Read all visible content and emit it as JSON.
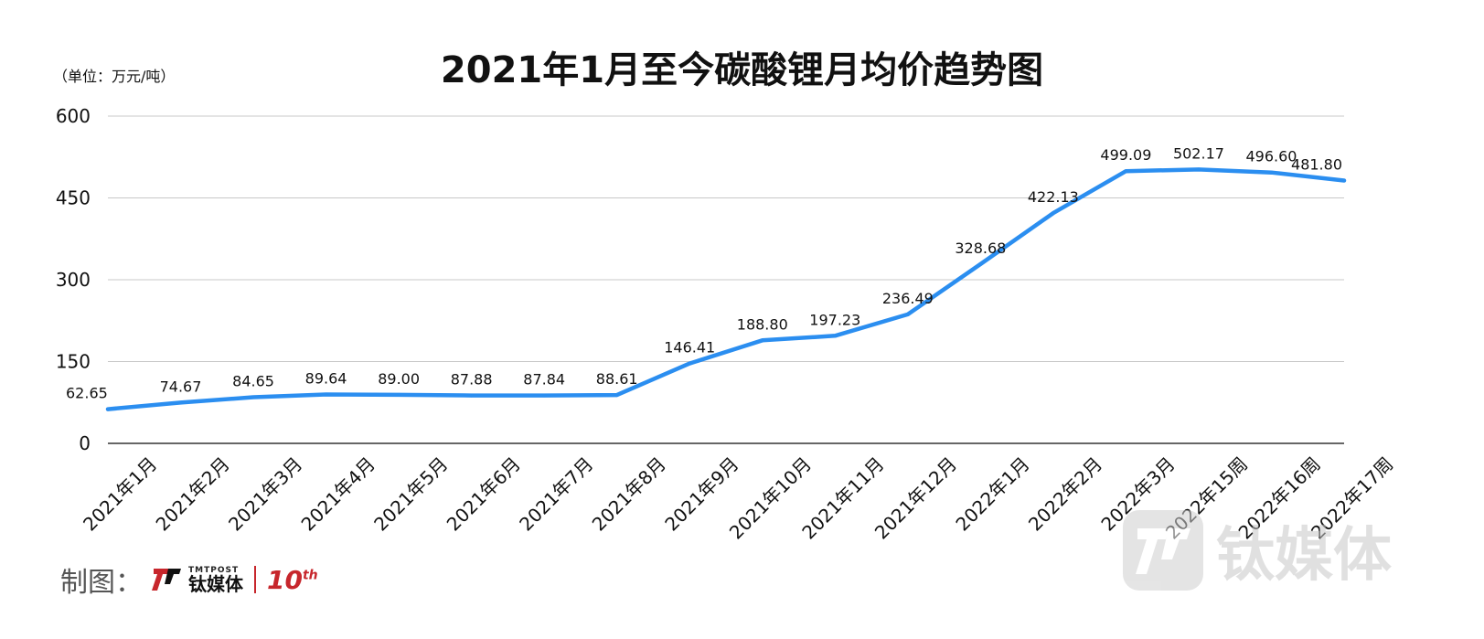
{
  "chart_data": {
    "type": "line",
    "title": "2021年1月至今碳酸锂月均价趋势图",
    "unit_label": "（单位：万元/吨）",
    "categories": [
      "2021年1月",
      "2021年2月",
      "2021年3月",
      "2021年4月",
      "2021年5月",
      "2021年6月",
      "2021年7月",
      "2021年8月",
      "2021年9月",
      "2021年10月",
      "2021年11月",
      "2021年12月",
      "2022年1月",
      "2022年2月",
      "2022年3月",
      "2022年15周",
      "2022年16周",
      "2022年17周"
    ],
    "values": [
      62.65,
      74.67,
      84.65,
      89.64,
      89.0,
      87.88,
      87.84,
      88.61,
      146.41,
      188.8,
      197.23,
      236.49,
      328.68,
      422.13,
      499.09,
      502.17,
      496.6,
      481.8
    ],
    "data_labels": [
      "62.65",
      "74.67",
      "84.65",
      "89.64",
      "89.00",
      "87.88",
      "87.84",
      "88.61",
      "146.41",
      "188.80",
      "197.23",
      "236.49",
      "328.68",
      "422.13",
      "499.09",
      "502.17",
      "496.60",
      "481.80"
    ],
    "yticks": [
      "0",
      "150",
      "300",
      "450",
      "600"
    ],
    "ylim": [
      0,
      600
    ],
    "grid": true,
    "line_color": "#2b8ef0",
    "grid_color": "#c8c8c8"
  },
  "footer": {
    "credit_label": "制图：",
    "logo_small": "TMTPOST",
    "logo_name": "钛媒体",
    "logo_tenth": "10",
    "logo_tenth_sup": "th",
    "brand_color": "#c7262c"
  },
  "watermark": {
    "text": "钛媒体"
  }
}
